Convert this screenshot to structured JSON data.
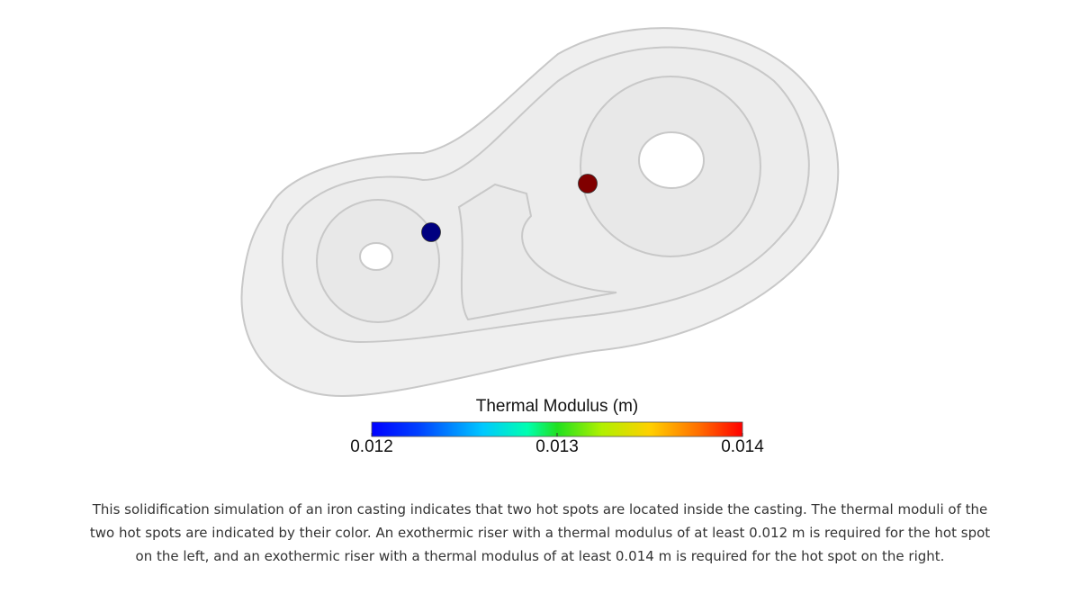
{
  "colorbar": {
    "title": "Thermal Modulus (m)",
    "range": [
      0.012,
      0.014
    ],
    "ticks": [
      0.012,
      0.013,
      0.014
    ]
  },
  "hot_spots": [
    {
      "value": 0.012
    },
    {
      "value": 0.014
    }
  ],
  "caption": "This solidification simulation of an iron casting indicates that two hot spots are located inside the casting. The thermal moduli of the two hot spots are indicated by their color. An exothermic riser with a thermal modulus of at least 0.012 m is required for the hot spot on the left, and an exothermic riser with a thermal modulus of at least 0.014 m is required for the hot spot on the right."
}
